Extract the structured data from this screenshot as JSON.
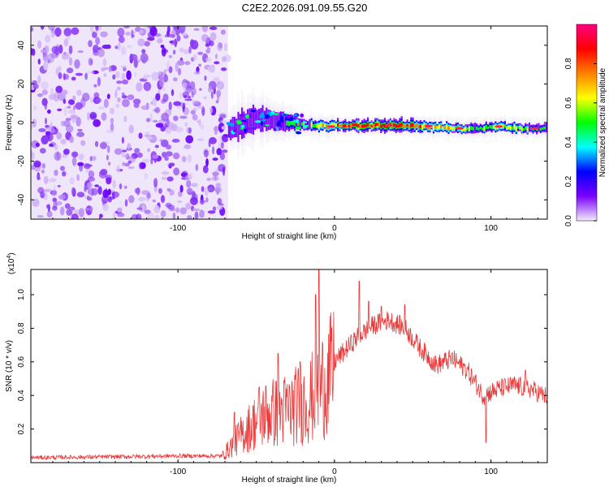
{
  "title": "C2E2.2026.091.09.55.G20",
  "chart_data": [
    {
      "type": "heatmap",
      "name": "spectrogram",
      "xlabel": "Height of straight line (km)",
      "ylabel": "Frequency (Hz)",
      "xlim": [
        -194,
        136
      ],
      "ylim": [
        -50,
        50
      ],
      "xticks": [
        -100,
        0,
        100
      ],
      "xtick_labels": [
        "-100",
        "0",
        "100"
      ],
      "yticks": [
        -40,
        -20,
        0,
        20,
        40
      ],
      "ytick_labels": [
        "-40",
        "-20",
        "0",
        "20",
        "40"
      ],
      "noise_region_x": [
        -194,
        -68
      ],
      "signal_band": [
        {
          "x": -68,
          "f": -4,
          "width": 6,
          "amp": 0.35
        },
        {
          "x": -60,
          "f": -1,
          "width": 9,
          "amp": 0.4
        },
        {
          "x": -50,
          "f": 2,
          "width": 8,
          "amp": 0.45
        },
        {
          "x": -40,
          "f": 1,
          "width": 6,
          "amp": 0.5
        },
        {
          "x": -30,
          "f": 0,
          "width": 5,
          "amp": 0.55
        },
        {
          "x": -20,
          "f": -1,
          "width": 4,
          "amp": 0.6
        },
        {
          "x": -5,
          "f": -2,
          "width": 3,
          "amp": 0.75
        },
        {
          "x": 10,
          "f": -1.5,
          "width": 3,
          "amp": 0.95
        },
        {
          "x": 30,
          "f": -1.5,
          "width": 3,
          "amp": 0.98
        },
        {
          "x": 45,
          "f": -1.5,
          "width": 3,
          "amp": 0.9
        },
        {
          "x": 60,
          "f": -2,
          "width": 3,
          "amp": 0.8
        },
        {
          "x": 75,
          "f": -3,
          "width": 3,
          "amp": 0.75
        },
        {
          "x": 90,
          "f": -3,
          "width": 3,
          "amp": 0.6
        },
        {
          "x": 105,
          "f": -2,
          "width": 3,
          "amp": 0.7
        },
        {
          "x": 120,
          "f": -3,
          "width": 3,
          "amp": 0.65
        },
        {
          "x": 136,
          "f": -3,
          "width": 3,
          "amp": 0.55
        }
      ],
      "colorbar": {
        "label": "Normalized spectral amplitude",
        "range": [
          0,
          1
        ],
        "ticks": [
          0.0,
          0.2,
          0.4,
          0.6,
          0.8
        ],
        "tick_labels": [
          "0.0",
          "0.2",
          "0.4",
          "0.6",
          "0.8"
        ],
        "colors": [
          "#f2ecfb",
          "#7b00ff",
          "#0000ff",
          "#00ffff",
          "#00ff00",
          "#ffff00",
          "#ff8000",
          "#ff0000",
          "#ff0080"
        ]
      }
    },
    {
      "type": "line",
      "name": "snr",
      "xlabel": "Height of straight line (km)",
      "ylabel": "SNR (10 * v/v)",
      "y_multiplier": "(x10",
      "y_multiplier_exp": "4",
      "y_multiplier_close": ")",
      "xlim": [
        -194,
        136
      ],
      "ylim": [
        0,
        1.15
      ],
      "xticks": [
        -100,
        0,
        100
      ],
      "xtick_labels": [
        "-100",
        "0",
        "100"
      ],
      "yticks": [
        0.2,
        0.4,
        0.6,
        0.8,
        1.0
      ],
      "ytick_labels": [
        "0.2",
        "0.4",
        "0.6",
        "0.8",
        "1.0"
      ],
      "color": "#e83a3a",
      "trend": [
        {
          "x": -194,
          "y": 0.03
        },
        {
          "x": -140,
          "y": 0.035
        },
        {
          "x": -100,
          "y": 0.04
        },
        {
          "x": -72,
          "y": 0.04
        },
        {
          "x": -60,
          "y": 0.18
        },
        {
          "x": -45,
          "y": 0.32
        },
        {
          "x": -30,
          "y": 0.35
        },
        {
          "x": -15,
          "y": 0.42
        },
        {
          "x": -5,
          "y": 0.55
        },
        {
          "x": 5,
          "y": 0.65
        },
        {
          "x": 15,
          "y": 0.75
        },
        {
          "x": 25,
          "y": 0.82
        },
        {
          "x": 35,
          "y": 0.85
        },
        {
          "x": 45,
          "y": 0.8
        },
        {
          "x": 55,
          "y": 0.68
        },
        {
          "x": 65,
          "y": 0.58
        },
        {
          "x": 75,
          "y": 0.62
        },
        {
          "x": 85,
          "y": 0.55
        },
        {
          "x": 95,
          "y": 0.4
        },
        {
          "x": 105,
          "y": 0.44
        },
        {
          "x": 115,
          "y": 0.46
        },
        {
          "x": 125,
          "y": 0.44
        },
        {
          "x": 136,
          "y": 0.39
        }
      ],
      "spikes": [
        {
          "x": -64,
          "y": 0.3
        },
        {
          "x": -48,
          "y": 0.45
        },
        {
          "x": -36,
          "y": 0.65
        },
        {
          "x": -22,
          "y": 0.6
        },
        {
          "x": -12,
          "y": 1.0
        },
        {
          "x": -10,
          "y": 1.18
        },
        {
          "x": 16,
          "y": 1.08
        },
        {
          "x": 22,
          "y": 0.96
        },
        {
          "x": 30,
          "y": 0.93
        },
        {
          "x": 45,
          "y": 0.94
        },
        {
          "x": 97,
          "y": 0.12
        },
        {
          "x": 122,
          "y": 0.55
        }
      ]
    }
  ]
}
